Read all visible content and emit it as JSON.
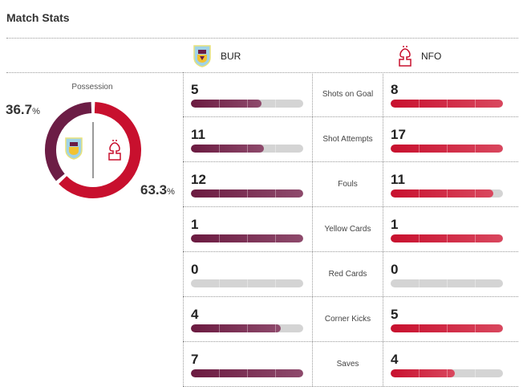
{
  "title": "Match Stats",
  "home": {
    "abbr": "BUR",
    "color": "#6c1d45"
  },
  "away": {
    "abbr": "NFO",
    "color": "#c8102e"
  },
  "possession": {
    "label": "Possession",
    "home_pct": "36.7",
    "away_pct": "63.3",
    "unit": "%",
    "home_value": 36.7,
    "away_value": 63.3
  },
  "stats": [
    {
      "label": "Shots on Goal",
      "home": 5,
      "away": 8
    },
    {
      "label": "Shot Attempts",
      "home": 11,
      "away": 17
    },
    {
      "label": "Fouls",
      "home": 12,
      "away": 11
    },
    {
      "label": "Yellow Cards",
      "home": 1,
      "away": 1
    },
    {
      "label": "Red Cards",
      "home": 0,
      "away": 0
    },
    {
      "label": "Corner Kicks",
      "home": 4,
      "away": 5
    },
    {
      "label": "Saves",
      "home": 7,
      "away": 4
    }
  ]
}
